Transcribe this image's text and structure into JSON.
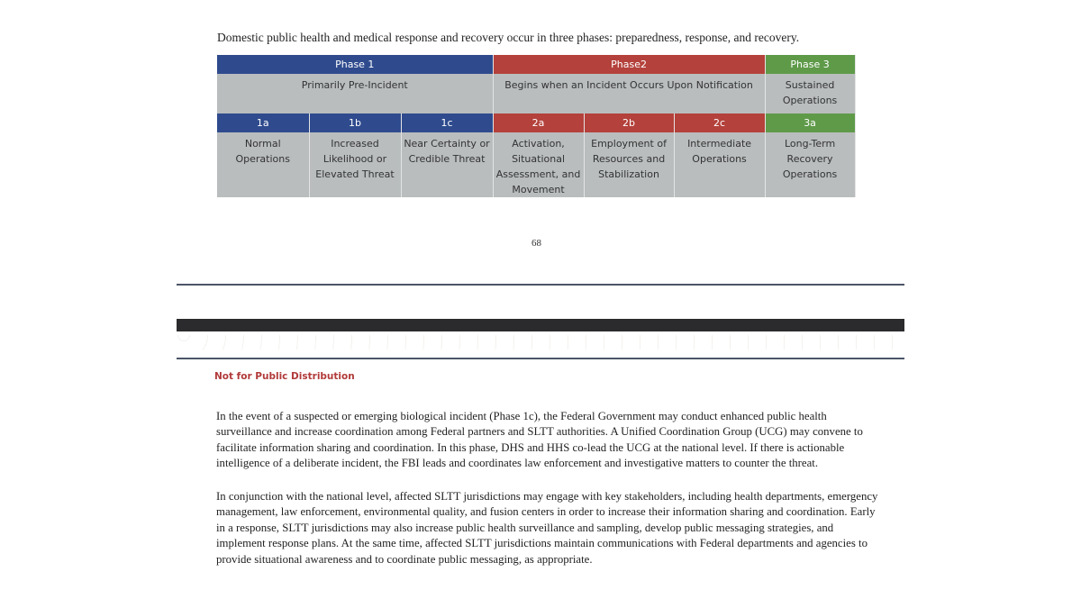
{
  "intro": "Domestic public health and medical response and recovery occur in three phases: preparedness, response, and recovery.",
  "colors": {
    "phase1": "#2f4b8e",
    "phase2": "#b4413b",
    "phase3": "#5f9a49",
    "cell": "#b9bdbe",
    "notice": "#b23a3a"
  },
  "table": {
    "phases": [
      {
        "label": "Phase 1",
        "desc": "Primarily Pre-Incident"
      },
      {
        "label": "Phase2",
        "desc": "Begins when an Incident Occurs Upon Notification"
      },
      {
        "label": "Phase 3",
        "desc": "Sustained Operations"
      }
    ],
    "subphases": [
      {
        "code": "1a",
        "desc": "Normal Operations"
      },
      {
        "code": "1b",
        "desc": "Increased Likelihood or Elevated Threat"
      },
      {
        "code": "1c",
        "desc": "Near Certainty or Credible Threat"
      },
      {
        "code": "2a",
        "desc": "Activation, Situational Assessment, and Movement"
      },
      {
        "code": "2b",
        "desc": "Employment of Resources and Stabilization"
      },
      {
        "code": "2c",
        "desc": "Intermediate Operations"
      },
      {
        "code": "3a",
        "desc": "Long-Term Recovery Operations"
      }
    ]
  },
  "page_number": "68",
  "notice": "Not for Public Distribution",
  "paragraphs": [
    "In the event of a suspected or emerging biological incident (Phase 1c), the Federal Government may conduct enhanced public health surveillance and increase coordination among Federal partners and SLTT authorities.  A Unified Coordination Group (UCG) may convene to facilitate information sharing and coordination.  In this phase, DHS and HHS co-lead the UCG at the national level.  If there is actionable intelligence of a deliberate incident, the FBI leads and coordinates law enforcement and investigative matters to counter the threat.",
    "In conjunction with the national level, affected SLTT jurisdictions may engage with key stakeholders, including health departments, emergency management, law enforcement, environmental quality, and fusion centers in order to increase their information sharing and coordination.  Early in a response, SLTT jurisdictions may also increase public health surveillance and sampling, develop public messaging strategies, and implement response plans.  At the same time, affected SLTT jurisdictions maintain communications with Federal departments and agencies to provide situational awareness and to coordinate public messaging, as appropriate."
  ]
}
